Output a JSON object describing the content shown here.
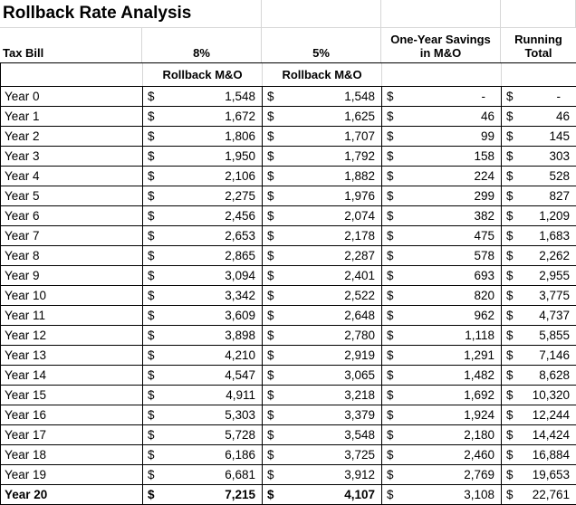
{
  "title": "Rollback Rate Analysis",
  "colors": {
    "background": "#ffffff",
    "text": "#000000",
    "table_border": "#000000",
    "gridline": "#d6d6d6"
  },
  "table": {
    "currency_symbol": "$",
    "headers": {
      "tax_bill": "Tax Bill",
      "rate_8": "8%",
      "rate_5": "5%",
      "savings_line1": "One-Year Savings",
      "savings_line2": "in M&O",
      "running_line1": "Running",
      "running_line2": "Total",
      "sub_8": "Rollback M&O",
      "sub_5": "Rollback M&O"
    },
    "rows": [
      {
        "label": "Year 0",
        "rollback_8": "1,548",
        "rollback_5": "1,548",
        "savings": "-",
        "running_total": "-",
        "bold": false
      },
      {
        "label": "Year 1",
        "rollback_8": "1,672",
        "rollback_5": "1,625",
        "savings": "46",
        "running_total": "46",
        "bold": false
      },
      {
        "label": "Year 2",
        "rollback_8": "1,806",
        "rollback_5": "1,707",
        "savings": "99",
        "running_total": "145",
        "bold": false
      },
      {
        "label": "Year 3",
        "rollback_8": "1,950",
        "rollback_5": "1,792",
        "savings": "158",
        "running_total": "303",
        "bold": false
      },
      {
        "label": "Year 4",
        "rollback_8": "2,106",
        "rollback_5": "1,882",
        "savings": "224",
        "running_total": "528",
        "bold": false
      },
      {
        "label": "Year 5",
        "rollback_8": "2,275",
        "rollback_5": "1,976",
        "savings": "299",
        "running_total": "827",
        "bold": false
      },
      {
        "label": "Year 6",
        "rollback_8": "2,456",
        "rollback_5": "2,074",
        "savings": "382",
        "running_total": "1,209",
        "bold": false
      },
      {
        "label": "Year 7",
        "rollback_8": "2,653",
        "rollback_5": "2,178",
        "savings": "475",
        "running_total": "1,683",
        "bold": false
      },
      {
        "label": "Year 8",
        "rollback_8": "2,865",
        "rollback_5": "2,287",
        "savings": "578",
        "running_total": "2,262",
        "bold": false
      },
      {
        "label": "Year 9",
        "rollback_8": "3,094",
        "rollback_5": "2,401",
        "savings": "693",
        "running_total": "2,955",
        "bold": false
      },
      {
        "label": "Year 10",
        "rollback_8": "3,342",
        "rollback_5": "2,522",
        "savings": "820",
        "running_total": "3,775",
        "bold": false
      },
      {
        "label": "Year 11",
        "rollback_8": "3,609",
        "rollback_5": "2,648",
        "savings": "962",
        "running_total": "4,737",
        "bold": false
      },
      {
        "label": "Year 12",
        "rollback_8": "3,898",
        "rollback_5": "2,780",
        "savings": "1,118",
        "running_total": "5,855",
        "bold": false
      },
      {
        "label": "Year 13",
        "rollback_8": "4,210",
        "rollback_5": "2,919",
        "savings": "1,291",
        "running_total": "7,146",
        "bold": false
      },
      {
        "label": "Year 14",
        "rollback_8": "4,547",
        "rollback_5": "3,065",
        "savings": "1,482",
        "running_total": "8,628",
        "bold": false
      },
      {
        "label": "Year 15",
        "rollback_8": "4,911",
        "rollback_5": "3,218",
        "savings": "1,692",
        "running_total": "10,320",
        "bold": false
      },
      {
        "label": "Year 16",
        "rollback_8": "5,303",
        "rollback_5": "3,379",
        "savings": "1,924",
        "running_total": "12,244",
        "bold": false
      },
      {
        "label": "Year 17",
        "rollback_8": "5,728",
        "rollback_5": "3,548",
        "savings": "2,180",
        "running_total": "14,424",
        "bold": false
      },
      {
        "label": "Year 18",
        "rollback_8": "6,186",
        "rollback_5": "3,725",
        "savings": "2,460",
        "running_total": "16,884",
        "bold": false
      },
      {
        "label": "Year 19",
        "rollback_8": "6,681",
        "rollback_5": "3,912",
        "savings": "2,769",
        "running_total": "19,653",
        "bold": false
      },
      {
        "label": "Year 20",
        "rollback_8": "7,215",
        "rollback_5": "4,107",
        "savings": "3,108",
        "running_total": "22,761",
        "bold": true
      }
    ]
  }
}
